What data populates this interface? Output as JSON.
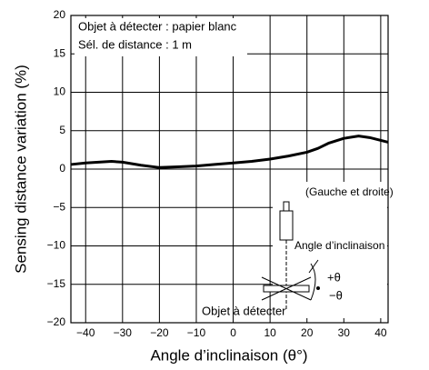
{
  "chart_data": {
    "type": "line",
    "x_label": "Angle d’inclinaison (θ°)",
    "y_label": "Sensing distance variation (%)",
    "annotations": [
      "Objet à détecter : papier blanc",
      "Sél. de distance : 1 m",
      "(Gauche et droite)",
      "Angle  d’inclinaison",
      "+θ",
      "−θ",
      "Objet à détecter"
    ],
    "x": [
      -44,
      -40,
      -33,
      -30,
      -25,
      -20,
      -15,
      -10,
      -5,
      0,
      5,
      10,
      15,
      20,
      23,
      26,
      30,
      34,
      37,
      42
    ],
    "series": [
      {
        "color": "#000000",
        "values": [
          0.6,
          0.8,
          1.0,
          0.9,
          0.5,
          0.2,
          0.3,
          0.4,
          0.6,
          0.8,
          1.0,
          1.3,
          1.7,
          2.2,
          2.7,
          3.4,
          4.0,
          4.3,
          4.1,
          3.5
        ]
      }
    ],
    "xlim": [
      -44,
      42
    ],
    "ylim": [
      -20,
      20
    ],
    "xticks": [
      {
        "value": -40,
        "label": "−40"
      },
      {
        "value": -30,
        "label": "−30"
      },
      {
        "value": -20,
        "label": "−20"
      },
      {
        "value": -10,
        "label": "−10"
      },
      0,
      10,
      20,
      30,
      40
    ],
    "yticks": [
      {
        "value": -20,
        "label": "−20"
      },
      {
        "value": -15,
        "label": "−15"
      },
      {
        "value": -10,
        "label": "−10"
      },
      {
        "value": -5,
        "label": "−5"
      },
      0,
      5,
      10,
      15,
      20
    ],
    "grid": true
  }
}
